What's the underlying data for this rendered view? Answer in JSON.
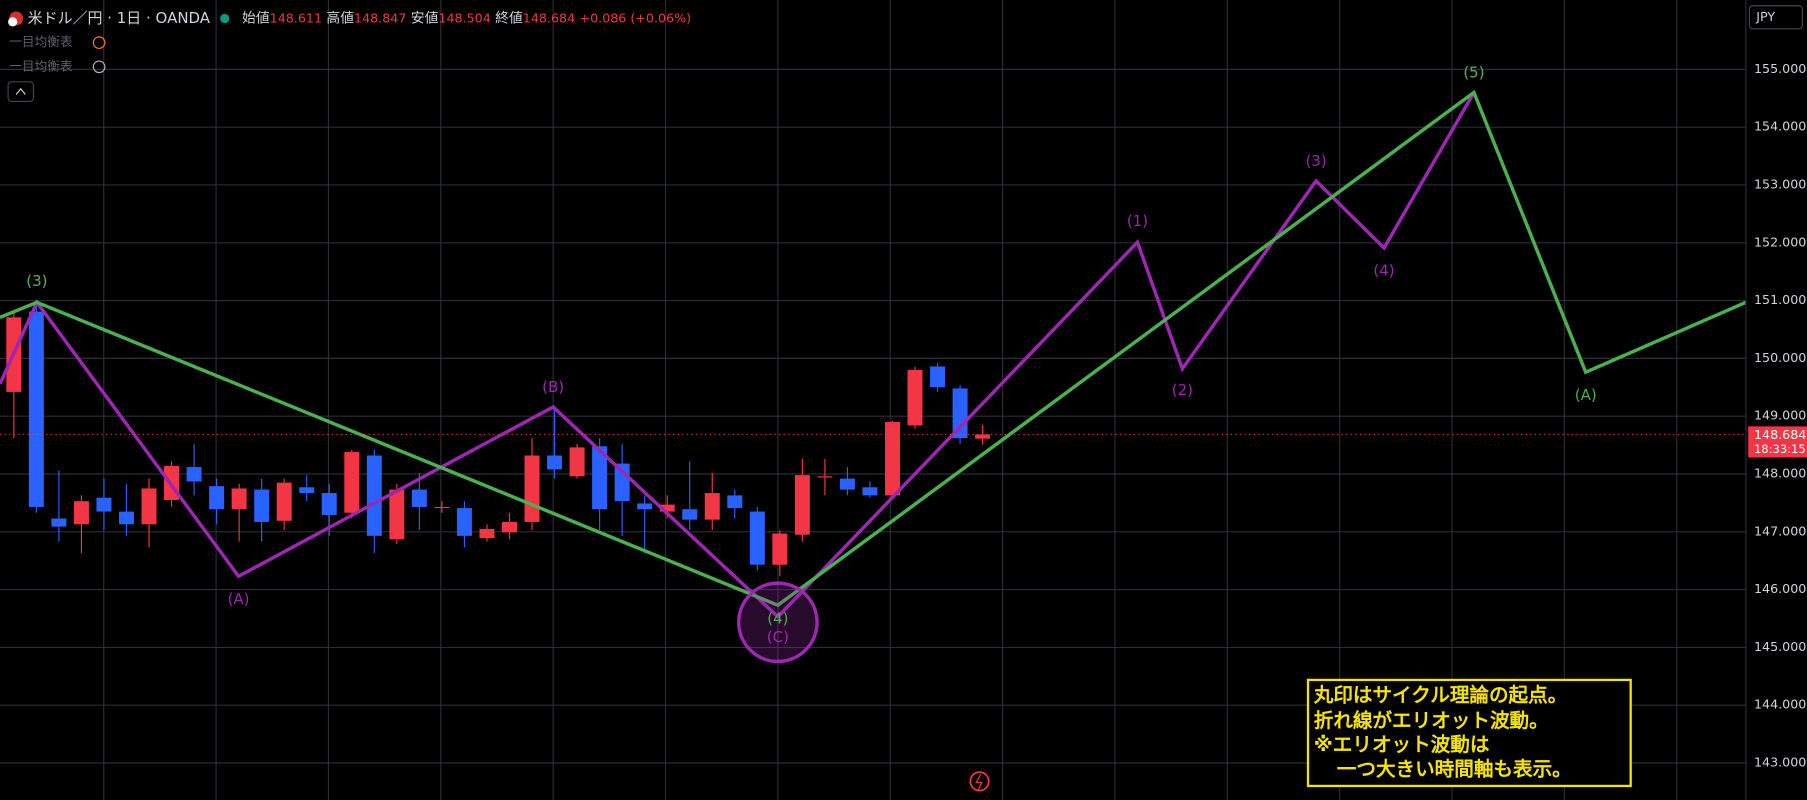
{
  "header": {
    "symbol": "米ドル／円 · 1日 · OANDA",
    "open_label": "始値",
    "high_label": "高値",
    "low_label": "安値",
    "close_label": "終値",
    "change": "+0.086 (+0.06%)",
    "indicators": [
      "一目均衡表",
      "一目均衡表"
    ],
    "currency": "JPY",
    "countdown": "18:33:15"
  },
  "annotation": [
    "丸印はサイクル理論の起点。",
    "折れ線がエリオット波動。",
    "※エリオット波動は",
    "一つ大きい時間軸も表示。"
  ],
  "chart_data": {
    "type": "candlestick",
    "up_color": "#f23645",
    "down_color": "#2962ff",
    "grid": true,
    "ylim": [
      142.36,
      156.2
    ],
    "yticks": [
      {
        "value": 143,
        "label": "143.000"
      },
      {
        "value": 144,
        "label": "144.000"
      },
      {
        "value": 145,
        "label": "145.000"
      },
      {
        "value": 146,
        "label": "146.000"
      },
      {
        "value": 147,
        "label": "147.000"
      },
      {
        "value": 148,
        "label": "148.000"
      },
      {
        "value": 149,
        "label": "149.000"
      },
      {
        "value": 150,
        "label": "150.000"
      },
      {
        "value": 151,
        "label": "151.000"
      },
      {
        "value": 152,
        "label": "152.000"
      },
      {
        "value": 153,
        "label": "153.000"
      },
      {
        "value": 154,
        "label": "154.000"
      },
      {
        "value": 155,
        "label": "155.000"
      }
    ],
    "open": [
      149.42,
      150.81,
      147.23,
      147.13,
      147.59,
      147.35,
      147.13,
      147.55,
      148.12,
      147.79,
      147.39,
      147.73,
      147.19,
      147.77,
      147.67,
      147.33,
      148.32,
      146.87,
      147.73,
      147.41,
      147.41,
      146.89,
      146.99,
      147.17,
      148.32,
      147.96,
      148.48,
      148.18,
      147.49,
      147.35,
      147.39,
      147.21,
      147.63,
      147.35,
      146.43,
      146.95,
      147.94,
      147.92,
      147.77,
      147.63,
      148.84,
      149.86,
      149.48,
      148.611
    ],
    "high": [
      150.81,
      150.97,
      148.06,
      147.63,
      147.92,
      147.83,
      147.92,
      148.22,
      148.52,
      147.92,
      147.83,
      147.92,
      147.92,
      147.98,
      147.83,
      148.42,
      148.42,
      147.83,
      148.02,
      147.53,
      147.53,
      147.13,
      147.33,
      148.62,
      149.12,
      148.52,
      148.62,
      148.52,
      147.63,
      147.63,
      148.22,
      148.02,
      147.73,
      147.43,
      147.03,
      148.26,
      148.26,
      148.12,
      147.87,
      148.92,
      149.86,
      149.92,
      149.54,
      148.847
    ],
    "low": [
      148.62,
      147.33,
      146.83,
      146.63,
      147.03,
      146.93,
      146.73,
      147.43,
      147.63,
      147.13,
      146.83,
      146.83,
      147.03,
      147.53,
      146.93,
      147.23,
      146.63,
      146.79,
      147.03,
      147.33,
      146.73,
      146.83,
      146.87,
      147.03,
      147.92,
      147.92,
      147.03,
      146.93,
      146.63,
      147.23,
      147.03,
      147.03,
      147.23,
      146.33,
      146.23,
      146.83,
      147.63,
      147.63,
      147.59,
      147.59,
      148.78,
      149.42,
      148.52,
      148.504
    ],
    "close": [
      150.71,
      147.43,
      147.09,
      147.53,
      147.35,
      147.13,
      147.75,
      148.14,
      147.87,
      147.39,
      147.75,
      147.17,
      147.85,
      147.67,
      147.29,
      148.38,
      146.93,
      147.73,
      147.43,
      147.43,
      146.93,
      147.05,
      147.17,
      148.32,
      148.08,
      148.46,
      147.39,
      147.53,
      147.39,
      147.47,
      147.21,
      147.67,
      147.41,
      146.43,
      146.97,
      147.98,
      147.96,
      147.73,
      147.63,
      148.9,
      149.8,
      149.5,
      148.62,
      148.684
    ],
    "price_line_color": "#f23645",
    "lines": [
      {
        "color": "#9c27b0",
        "values": [
          149.56,
          150.97,
          146.23,
          149.16,
          145.53,
          152.01,
          149.82,
          153.07,
          151.91,
          154.6
        ],
        "labels": [
          null,
          "(3)",
          "(A)",
          "(B)",
          "(C)",
          "(1)",
          "(2)",
          "(3)",
          "(4)",
          "(5)"
        ]
      },
      {
        "color": "#4caf50",
        "values": [
          150.71,
          150.97,
          145.73,
          154.6,
          149.76,
          150.97
        ],
        "labels": [
          null,
          "(3)",
          "(4)",
          "(5)",
          "(A)",
          null
        ]
      }
    ]
  }
}
